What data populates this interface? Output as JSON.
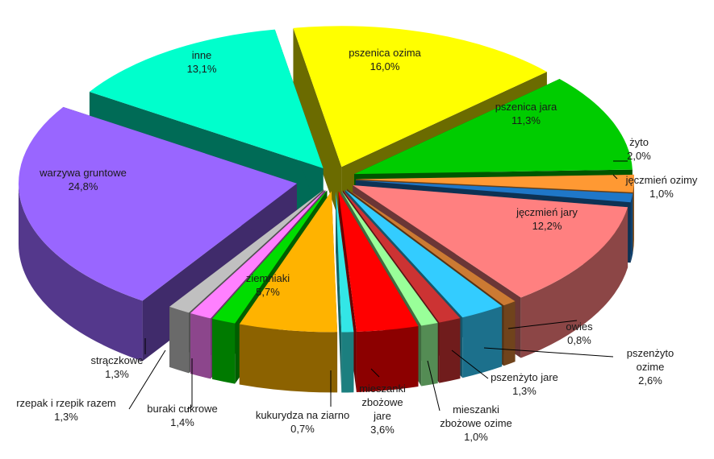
{
  "chart_data": {
    "type": "pie",
    "style": "3d-exploded",
    "title": "",
    "categories": [
      "pszenica ozima",
      "pszenica jara",
      "żyto",
      "jęczmień ozimy",
      "jęczmień jary",
      "owies",
      "pszenżyto ozime",
      "pszenżyto jare",
      "mieszanki zbożowe ozime",
      "mieszanki zbożowe jare",
      "kukurydza na ziarno",
      "ziemniaki",
      "buraki cukrowe",
      "rzepak i rzepik razem",
      "strączkowe",
      "warzywa gruntowe",
      "inne"
    ],
    "values": [
      16.0,
      11.3,
      2.0,
      1.0,
      12.2,
      0.8,
      2.6,
      1.3,
      1.0,
      3.6,
      0.7,
      5.7,
      1.4,
      1.3,
      1.3,
      24.8,
      13.1
    ],
    "labels": [
      [
        "pszenica ozima",
        "16,0%"
      ],
      [
        "pszenica jara",
        "11,3%"
      ],
      [
        "żyto",
        "2,0%"
      ],
      [
        "jęczmień ozimy",
        "1,0%"
      ],
      [
        "jęczmień jary",
        "12,2%"
      ],
      [
        "owies",
        "0,8%"
      ],
      [
        "pszenżyto",
        "ozime",
        "2,6%"
      ],
      [
        "pszenżyto jare",
        "1,3%"
      ],
      [
        "mieszanki",
        "zbożowe ozime",
        "1,0%"
      ],
      [
        "mieszanki",
        "zbożowe",
        "jare",
        "3,6%"
      ],
      [
        "kukurydza na ziarno",
        "0,7%"
      ],
      [
        "ziemniaki",
        "5,7%"
      ],
      [
        "buraki cukrowe",
        "1,4%"
      ],
      [
        "rzepak i rzepik razem",
        "1,3%"
      ],
      [
        "strączkowe",
        "1,3%"
      ],
      [
        "warzywa gruntowe",
        "24,8%"
      ],
      [
        "inne",
        "13,1%"
      ]
    ],
    "colors": [
      "#ffff00",
      "#00cc00",
      "#ff9933",
      "#1f77c8",
      "#ff8080",
      "#cc7a33",
      "#33ccff",
      "#cc3333",
      "#99ff99",
      "#ff0000",
      "#33e6e6",
      "#ffb300",
      "#00dd00",
      "#ff80ff",
      "#c0c0c0",
      "#9966ff",
      "#00ffcc"
    ],
    "legend": "none",
    "grid": false
  }
}
